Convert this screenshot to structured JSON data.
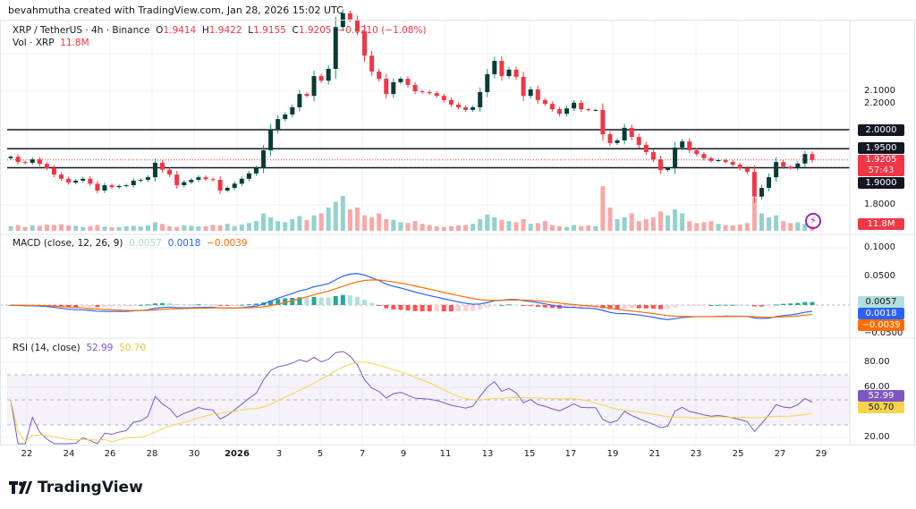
{
  "credit": "bevahmutha created with TradingView.com, Jan 28, 2026 15:02 UTC",
  "symbol": {
    "title": "XRP / TetherUS · 4h · Binance",
    "o_label": "O",
    "o": "1.9414",
    "h_label": "H",
    "h": "1.9422",
    "l_label": "L",
    "l": "1.9155",
    "c_label": "C",
    "c": "1.9205",
    "change": "−0.0210 (−1.08%)",
    "vol_label": "Vol · XRP",
    "vol": "11.8M"
  },
  "price_axis": {
    "labels": [
      "2.2000",
      "2.1000",
      "1.8000"
    ],
    "tags": {
      "l2000": "2.0000",
      "l1950": "1.9500",
      "last": "1.9205",
      "countdown": "57:43",
      "l1900": "1.9000",
      "vol": "11.8M"
    }
  },
  "macd": {
    "title": "MACD (close, 12, 26, 9)",
    "hist": "0.0057",
    "macd": "0.0018",
    "signal": "−0.0039",
    "axis": [
      "0.1000",
      "0.0500",
      "−0.0500"
    ]
  },
  "rsi": {
    "title": "RSI (14, close)",
    "rsi": "52.99",
    "ma": "50.70",
    "axis": [
      "80.00",
      "60.00",
      "20.00"
    ]
  },
  "x_axis": [
    "22",
    "24",
    "26",
    "28",
    "30",
    "2026",
    "3",
    "5",
    "7",
    "9",
    "11",
    "13",
    "15",
    "17",
    "19",
    "21",
    "23",
    "25",
    "27",
    "29"
  ],
  "logo": "TradingView",
  "colors": {
    "up": "#089981",
    "down": "#f23645",
    "macd": "#2962ff",
    "signal": "#ff6d00",
    "rsi": "#7e57c2",
    "rsi_ma": "#f7d24a",
    "hist_tag": "#b2dfdb"
  },
  "chart_data": {
    "type": "candlestick",
    "timeframe": "4h",
    "x_range": [
      "2025-12-21",
      "2026-01-28"
    ],
    "horizontal_lines": [
      2.0,
      1.95,
      1.9
    ],
    "last_price": 1.9205,
    "ylim": [
      1.77,
      2.31
    ],
    "closes": [
      1.929,
      1.915,
      1.913,
      1.922,
      1.91,
      1.899,
      1.882,
      1.871,
      1.861,
      1.866,
      1.871,
      1.858,
      1.84,
      1.854,
      1.849,
      1.852,
      1.854,
      1.866,
      1.868,
      1.875,
      1.913,
      1.895,
      1.882,
      1.854,
      1.862,
      1.868,
      1.875,
      1.87,
      1.868,
      1.84,
      1.847,
      1.858,
      1.871,
      1.885,
      1.899,
      1.946,
      2.0,
      2.028,
      2.04,
      2.059,
      2.094,
      2.089,
      2.141,
      2.129,
      2.16,
      2.27,
      2.306,
      2.29,
      2.259,
      2.195,
      2.153,
      2.134,
      2.094,
      2.125,
      2.134,
      2.118,
      2.101,
      2.099,
      2.096,
      2.089,
      2.078,
      2.066,
      2.059,
      2.052,
      2.059,
      2.099,
      2.146,
      2.181,
      2.141,
      2.158,
      2.139,
      2.089,
      2.106,
      2.078,
      2.068,
      2.054,
      2.042,
      2.056,
      2.071,
      2.054,
      2.052,
      2.052,
      1.988,
      1.965,
      1.972,
      2.005,
      1.981,
      1.96,
      1.941,
      1.922,
      1.894,
      1.899,
      1.953,
      1.969,
      1.946,
      1.936,
      1.925,
      1.918,
      1.92,
      1.915,
      1.908,
      1.899,
      1.889,
      1.824,
      1.847,
      1.875,
      1.915,
      1.903,
      1.899,
      1.911,
      1.936,
      1.9205
    ],
    "volumes_m": [
      12,
      15,
      10,
      14,
      13,
      16,
      15,
      17,
      14,
      13,
      10,
      12,
      15,
      11,
      9,
      10,
      12,
      13,
      11,
      14,
      22,
      18,
      12,
      10,
      14,
      13,
      11,
      12,
      15,
      14,
      18,
      12,
      16,
      20,
      25,
      45,
      35,
      25,
      22,
      30,
      38,
      28,
      40,
      45,
      60,
      75,
      90,
      55,
      60,
      40,
      35,
      45,
      30,
      28,
      22,
      20,
      25,
      18,
      15,
      12,
      10,
      12,
      14,
      15,
      18,
      30,
      42,
      35,
      28,
      25,
      22,
      30,
      18,
      20,
      25,
      15,
      12,
      10,
      15,
      12,
      14,
      12,
      115,
      60,
      30,
      35,
      45,
      25,
      30,
      35,
      50,
      40,
      55,
      45,
      25,
      20,
      22,
      25,
      18,
      15,
      14,
      16,
      20,
      85,
      45,
      35,
      40,
      25,
      20,
      22,
      18,
      11.8
    ],
    "macd_range": [
      -0.05,
      0.11
    ],
    "rsi_range": [
      15,
      90
    ],
    "rsi_bands": [
      70,
      30
    ]
  }
}
